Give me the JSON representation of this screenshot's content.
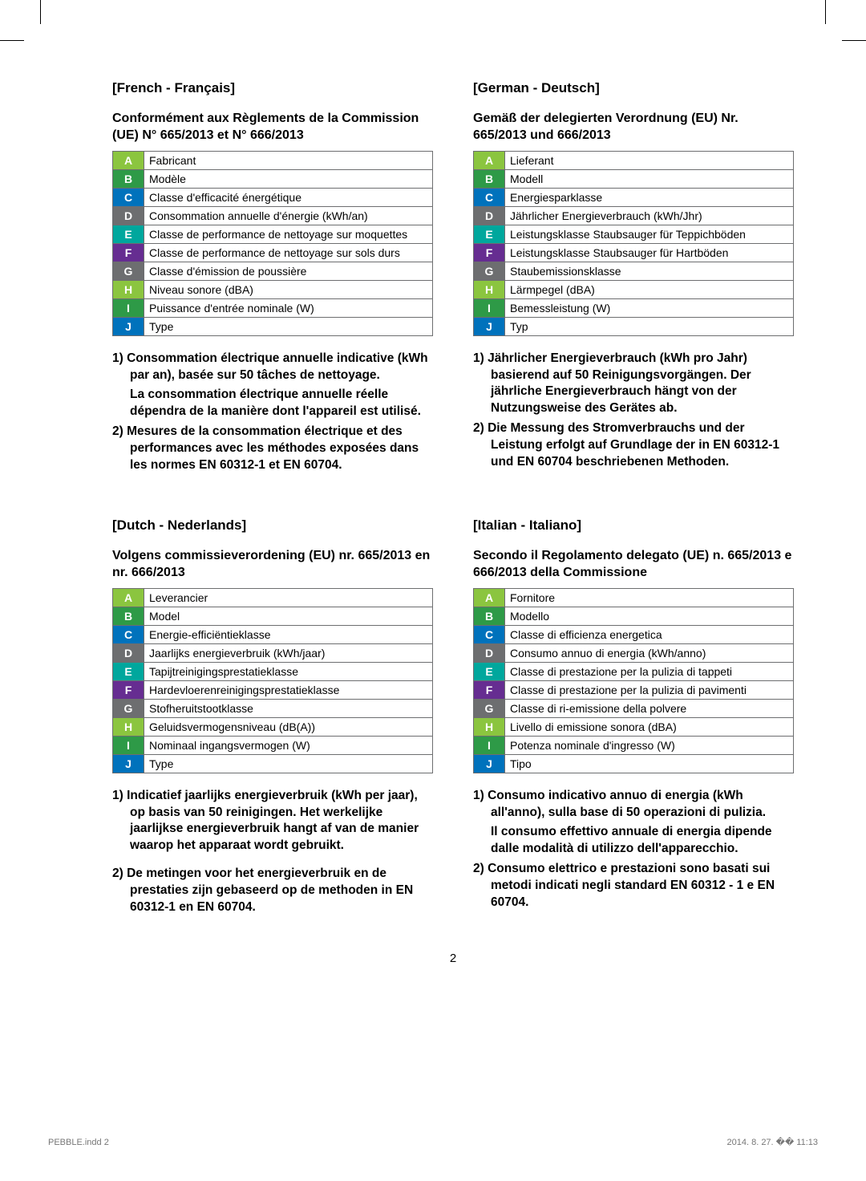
{
  "crop": {
    "color": "#000000"
  },
  "letter_colors": {
    "A": "#8bc53f",
    "B": "#2e9a47",
    "C": "#0072bc",
    "D": "#6d6e70",
    "E": "#00a79d",
    "F": "#662d91",
    "G": "#6d6e70",
    "H": "#8bc53f",
    "I": "#2e9a47",
    "J": "#0072bc"
  },
  "letters": [
    "A",
    "B",
    "C",
    "D",
    "E",
    "F",
    "G",
    "H",
    "I",
    "J"
  ],
  "french": {
    "lang": "[French - Français]",
    "reg": "Conformément aux Règlements de la Commission (UE) N° 665/2013 et N° 666/2013",
    "rows": [
      "Fabricant",
      "Modèle",
      "Classe d'efficacité énergétique",
      "Consommation annuelle d'énergie (kWh/an)",
      "Classe de performance de nettoyage sur moquettes",
      "Classe de performance de nettoyage sur sols durs",
      "Classe d'émission de poussière",
      "Niveau sonore (dBA)",
      "Puissance d'entrée nominale (W)",
      "Type"
    ],
    "notes": [
      "1) Consommation électrique annuelle indicative (kWh par an), basée sur 50 tâches de nettoyage.",
      "La consommation électrique annuelle réelle dépendra de la manière dont l'appareil est utilisé.",
      "2) Mesures de la consommation électrique et des performances avec les méthodes exposées dans les normes EN 60312-1 et EN 60704."
    ]
  },
  "german": {
    "lang": "[German - Deutsch]",
    "reg": "Gemäß der delegierten Verordnung (EU) Nr. 665/2013 und 666/2013",
    "rows": [
      "Lieferant",
      "Modell",
      "Energiesparklasse",
      "Jährlicher Energieverbrauch (kWh/Jhr)",
      "Leistungsklasse Staubsauger für Teppichböden",
      "Leistungsklasse Staubsauger für Hartböden",
      "Staubemissionsklasse",
      "Lärmpegel (dBA)",
      "Bemessleistung (W)",
      "Typ"
    ],
    "notes": [
      "1) Jährlicher Energieverbrauch (kWh pro Jahr) basierend auf 50 Reinigungsvorgängen. Der jährliche Energieverbrauch hängt von der Nutzungsweise des Gerätes ab.",
      "2) Die Messung des Stromverbrauchs und der Leistung erfolgt auf Grundlage der in EN 60312-1 und EN 60704 beschriebenen Methoden."
    ]
  },
  "dutch": {
    "lang": "[Dutch - Nederlands]",
    "reg": "Volgens commissieverordening (EU) nr. 665/2013 en nr. 666/2013",
    "rows": [
      "Leverancier",
      "Model",
      "Energie-efficiëntieklasse",
      "Jaarlijks energieverbruik (kWh/jaar)",
      "Tapijtreinigingsprestatieklasse",
      "Hardevloerenreinigingsprestatieklasse",
      "Stofheruitstootklasse",
      "Geluidsvermogensniveau (dB(A))",
      "Nominaal ingangsvermogen (W)",
      "Type"
    ],
    "notes": [
      "1) Indicatief jaarlijks energieverbruik (kWh per jaar), op basis van 50 reinigingen. Het werkelijke jaarlijkse energieverbruik hangt af van de manier waarop het apparaat wordt gebruikt.",
      "2) De metingen voor het energieverbruik en de prestaties zijn gebaseerd op de methoden in EN 60312-1 en EN 60704."
    ]
  },
  "italian": {
    "lang": "[Italian - Italiano]",
    "reg": "Secondo il Regolamento delegato (UE) n. 665/2013 e 666/2013 della Commissione",
    "rows": [
      "Fornitore",
      "Modello",
      "Classe di efficienza energetica",
      "Consumo annuo di energia (kWh/anno)",
      "Classe di prestazione per la pulizia di tappeti",
      "Classe di prestazione per la pulizia di pavimenti",
      "Classe di ri-emissione della polvere",
      "Livello di emissione sonora (dBA)",
      "Potenza nominale d'ingresso (W)",
      "Tipo"
    ],
    "notes": [
      "1) Consumo indicativo annuo di energia (kWh all'anno), sulla base di 50 operazioni di pulizia.",
      "Il consumo effettivo annuale di energia dipende dalle modalità di utilizzo dell'apparecchio.",
      "2) Consumo elettrico e prestazioni sono basati sui metodi indicati negli standard EN 60312 - 1 e EN 60704."
    ]
  },
  "pagenum": "2",
  "footer_left": "PEBBLE.indd   2",
  "footer_right": "2014. 8. 27.   �� 11:13"
}
